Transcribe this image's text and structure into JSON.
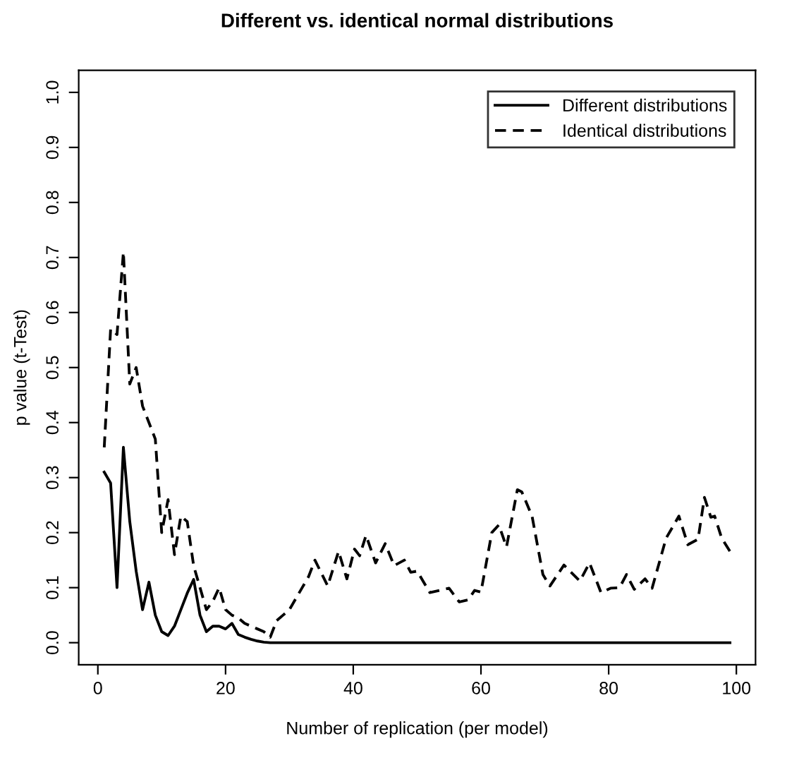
{
  "chart_data": {
    "type": "line",
    "title": "Different vs. identical normal distributions",
    "xlabel": "Number of replication (per model)",
    "ylabel": "p value (t-Test)",
    "xlim": [
      -3,
      103
    ],
    "ylim": [
      -0.04,
      1.04
    ],
    "xticks": [
      0,
      20,
      40,
      60,
      80,
      100
    ],
    "yticks": [
      {
        "value": 0,
        "label": "0.0"
      },
      0.1,
      0.2,
      0.3,
      0.4,
      0.5,
      0.6,
      0.7,
      0.8,
      0.9,
      {
        "value": 1,
        "label": "1.0"
      }
    ],
    "legend": "top right",
    "grid": false,
    "series": [
      {
        "name": "Different distributions",
        "color": "#000000",
        "line_style": "solid",
        "x": [
          1,
          2,
          3,
          4,
          5,
          6,
          7,
          8,
          9,
          10,
          11,
          12,
          13,
          14,
          15,
          16,
          17,
          18,
          19,
          20,
          21,
          22,
          23,
          24,
          25,
          26,
          27,
          99
        ],
        "values": [
          0.31,
          0.29,
          0.1,
          0.355,
          0.22,
          0.13,
          0.06,
          0.11,
          0.05,
          0.02,
          0.013,
          0.03,
          0.06,
          0.09,
          0.115,
          0.05,
          0.02,
          0.03,
          0.03,
          0.025,
          0.035,
          0.015,
          0.01,
          0.006,
          0.003,
          0.001,
          0,
          0
        ]
      },
      {
        "name": "Identical distributions",
        "color": "#000000",
        "line_style": "dashed",
        "x": [
          1,
          2,
          3,
          4,
          5,
          6,
          7,
          8,
          9,
          10,
          11,
          12,
          13,
          14,
          15,
          16,
          17,
          18,
          19,
          20,
          21,
          22,
          23,
          24,
          25,
          26,
          27,
          28,
          29,
          30,
          31,
          32,
          33,
          34,
          36,
          37.7,
          39,
          40.2,
          41,
          42,
          43.5,
          45,
          46.4,
          48,
          49,
          50,
          52,
          55,
          56.6,
          58,
          59,
          60,
          61.7,
          62.8,
          64,
          65.7,
          66.4,
          68,
          69.7,
          70.8,
          73,
          75.5,
          77,
          78.8,
          80.3,
          81.7,
          82.8,
          84,
          85.7,
          86.8,
          89,
          91,
          92.4,
          94,
          95,
          96,
          96.6,
          97.7,
          99
        ],
        "values": [
          0.355,
          0.57,
          0.56,
          0.71,
          0.47,
          0.5,
          0.43,
          0.4,
          0.37,
          0.2,
          0.26,
          0.16,
          0.23,
          0.22,
          0.14,
          0.1,
          0.06,
          0.075,
          0.1,
          0.06,
          0.05,
          0.045,
          0.035,
          0.03,
          0.025,
          0.02,
          0.01,
          0.04,
          0.05,
          0.06,
          0.08,
          0.1,
          0.12,
          0.15,
          0.103,
          0.166,
          0.116,
          0.17,
          0.158,
          0.195,
          0.145,
          0.18,
          0.14,
          0.15,
          0.128,
          0.13,
          0.091,
          0.099,
          0.074,
          0.078,
          0.095,
          0.092,
          0.2,
          0.214,
          0.174,
          0.278,
          0.274,
          0.23,
          0.124,
          0.103,
          0.141,
          0.112,
          0.145,
          0.091,
          0.099,
          0.1,
          0.124,
          0.097,
          0.116,
          0.099,
          0.19,
          0.23,
          0.178,
          0.188,
          0.264,
          0.228,
          0.23,
          0.19,
          0.166
        ]
      }
    ]
  }
}
